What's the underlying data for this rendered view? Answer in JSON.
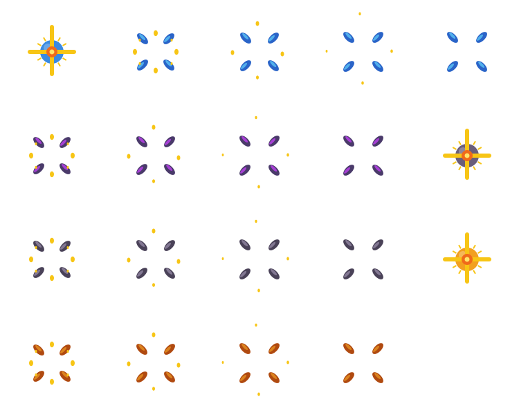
{
  "sheet": {
    "kind": "sprite-sheet",
    "columns": 5,
    "rows": 4,
    "rows_data": [
      {
        "name": "blue-orb-burst",
        "color": "#2a64c8",
        "highlight": "#55b8f0",
        "frames": [
          "orb-burst",
          "shards-1",
          "shards-2",
          "shards-3",
          "shards-4"
        ]
      },
      {
        "name": "purple-orb-burst",
        "color": "#4a3a6a",
        "highlight": "#b040e0",
        "frames": [
          "shards-1",
          "shards-2",
          "shards-3",
          "shards-4",
          "orb-burst"
        ]
      },
      {
        "name": "stone-orb-burst",
        "color": "#4a4258",
        "highlight": "#8a7e9a",
        "frames": [
          "shards-1",
          "shards-2",
          "shards-3",
          "shards-4",
          "orb-burst"
        ]
      },
      {
        "name": "amber-orb-burst",
        "color": "#b04a10",
        "highlight": "#e08a20",
        "frames": [
          "shards-1",
          "shards-2",
          "shards-3",
          "shards-4",
          "empty"
        ]
      }
    ],
    "orb_colors": {
      "blue": "#3a8ae0",
      "stone": "#6a5e7a",
      "amber": "#f2a020"
    },
    "spark_color": "#f7c515",
    "spark_core": "#ffe46a",
    "flare_color": "#f06a1a"
  }
}
